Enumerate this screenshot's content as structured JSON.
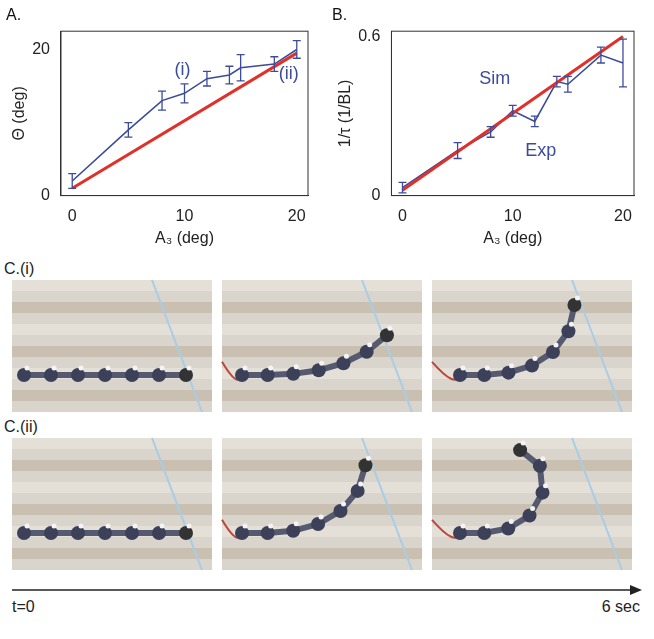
{
  "chart_data": [
    {
      "type": "line",
      "title": "A.",
      "x_label": "A₃ (deg)",
      "y_label": "Θ (deg)",
      "xlim": [
        -1,
        21
      ],
      "xticks": [
        0,
        10,
        20
      ],
      "ylim": [
        0,
        22.5
      ],
      "yticks": [
        0,
        20
      ],
      "grid": false,
      "series": [
        {
          "color": "#e0302a",
          "x": [
            0,
            20
          ],
          "values": [
            1,
            19.5
          ]
        },
        {
          "color": "#3d4b9c",
          "x": [
            0,
            5,
            8,
            10,
            12,
            14,
            15,
            18,
            20
          ],
          "values": [
            2,
            9,
            13,
            14,
            16,
            16.5,
            17.5,
            18,
            20
          ],
          "errors": [
            1,
            1,
            1.3,
            1.3,
            1,
            1.2,
            1.8,
            1,
            1.2
          ]
        }
      ],
      "annotations": [
        {
          "text": "(i)",
          "x": 10
        },
        {
          "text": "(ii)",
          "x": 20
        }
      ]
    },
    {
      "type": "line",
      "title": "B.",
      "x_label": "A₃ (deg)",
      "y_label": "1/τ (1/BL)",
      "xlim": [
        -1,
        21
      ],
      "xticks": [
        0,
        10,
        20
      ],
      "ylim": [
        0,
        0.62
      ],
      "yticks": [
        0,
        0.6
      ],
      "grid": false,
      "series": [
        {
          "name": "Sim",
          "color": "#e0302a",
          "x": [
            0,
            20
          ],
          "values": [
            0.02,
            0.6
          ]
        },
        {
          "name": "Exp",
          "color": "#3d4b9c",
          "x": [
            0,
            5,
            8,
            10,
            12,
            14,
            15,
            18,
            20
          ],
          "values": [
            0.03,
            0.17,
            0.24,
            0.32,
            0.28,
            0.43,
            0.42,
            0.53,
            0.5
          ],
          "errors": [
            0.02,
            0.03,
            0.02,
            0.02,
            0.02,
            0.02,
            0.03,
            0.03,
            0.09
          ]
        }
      ]
    }
  ],
  "figure_c": {
    "rows": [
      {
        "label": "C.(i)"
      },
      {
        "label": "C.(ii)"
      }
    ],
    "time_axis": {
      "start": "t=0",
      "end": "6 sec"
    }
  }
}
